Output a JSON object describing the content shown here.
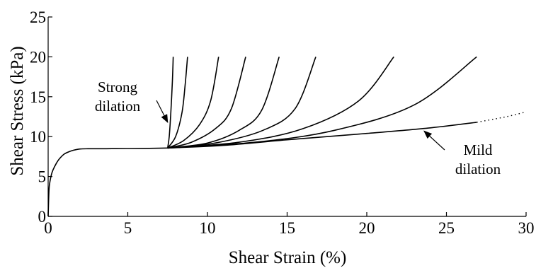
{
  "chart_data": {
    "type": "line",
    "title": "",
    "xlabel": "Shear Strain  (%)",
    "ylabel": "Shear Stress  (kPa)",
    "xlim": [
      0,
      30
    ],
    "ylim": [
      0,
      25
    ],
    "xticks": [
      "0",
      "5",
      "10",
      "15",
      "20",
      "25",
      "30"
    ],
    "yticks": [
      "0",
      "5",
      "10",
      "15",
      "20",
      "25"
    ],
    "grid": false,
    "legend": "none",
    "line_color": "#000000",
    "base_curve": {
      "x": [
        0,
        0.05,
        0.1,
        0.2,
        0.3,
        0.5,
        0.7,
        1.0,
        1.3,
        1.6,
        2.0,
        2.5,
        3,
        4,
        5,
        6,
        7,
        7.5
      ],
      "y": [
        0,
        3.2,
        4.2,
        5.2,
        5.8,
        6.6,
        7.2,
        7.8,
        8.1,
        8.3,
        8.45,
        8.48,
        8.48,
        8.49,
        8.5,
        8.52,
        8.55,
        8.57
      ]
    },
    "series": [
      {
        "x": [
          7.5,
          7.6,
          7.7,
          7.8,
          7.85
        ],
        "y": [
          8.57,
          10.0,
          13.0,
          17.0,
          20.0
        ]
      },
      {
        "x": [
          7.5,
          8.0,
          8.4,
          8.6,
          8.75
        ],
        "y": [
          8.57,
          10.0,
          13.0,
          16.5,
          20.0
        ]
      },
      {
        "x": [
          7.5,
          8.5,
          9.5,
          10.2,
          10.7
        ],
        "y": [
          8.57,
          9.5,
          11.5,
          14.5,
          20.0
        ]
      },
      {
        "x": [
          7.5,
          9.0,
          10.5,
          11.5,
          12.4
        ],
        "y": [
          8.57,
          9.3,
          11.0,
          13.5,
          20.0
        ]
      },
      {
        "x": [
          7.5,
          10.0,
          12.0,
          13.4,
          14.5
        ],
        "y": [
          8.57,
          9.2,
          10.8,
          13.3,
          20.0
        ]
      },
      {
        "x": [
          7.5,
          10.5,
          13.5,
          15.5,
          16.8
        ],
        "y": [
          8.57,
          9.2,
          10.8,
          13.5,
          20.0
        ]
      },
      {
        "x": [
          7.5,
          12.0,
          16.0,
          19.5,
          21.7
        ],
        "y": [
          8.57,
          9.3,
          11.0,
          14.5,
          20.0
        ]
      },
      {
        "x": [
          7.5,
          13.0,
          18.0,
          23.0,
          26.9
        ],
        "y": [
          8.57,
          9.3,
          10.8,
          14.0,
          20.0
        ]
      },
      {
        "x": [
          7.5,
          11.0,
          15.0,
          20.0,
          24.0,
          26.9
        ],
        "y": [
          8.57,
          8.9,
          9.6,
          10.4,
          11.1,
          11.8
        ]
      }
    ],
    "extrapolation": {
      "x": [
        26.9,
        28.0,
        29.0,
        30.0
      ],
      "y": [
        11.8,
        12.2,
        12.6,
        13.1
      ],
      "style": "dotted"
    },
    "annotations": [
      {
        "lines": [
          "Strong",
          "dilation"
        ],
        "arrow_to": {
          "x": 7.5,
          "y": 11.8
        }
      },
      {
        "lines": [
          "Mild",
          "dilation"
        ],
        "arrow_to": {
          "x": 23.6,
          "y": 10.7
        }
      }
    ]
  }
}
